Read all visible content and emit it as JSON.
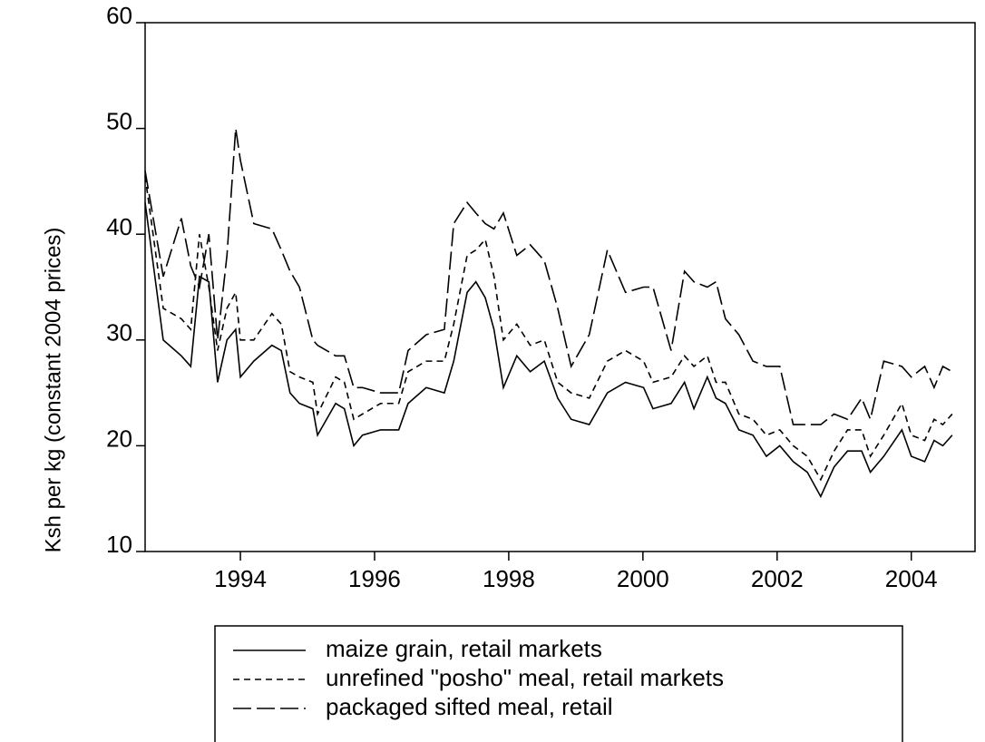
{
  "chart_data": {
    "type": "line",
    "y_label": "Ksh per kg (constant 2004 prices)",
    "x": [
      1992.58,
      1992.85,
      1993.12,
      1993.26,
      1993.39,
      1993.53,
      1993.66,
      1993.8,
      1993.93,
      1994.0,
      1994.2,
      1994.47,
      1994.61,
      1994.74,
      1994.88,
      1995.08,
      1995.15,
      1995.42,
      1995.55,
      1995.69,
      1995.82,
      1996.09,
      1996.36,
      1996.5,
      1996.77,
      1997.04,
      1997.18,
      1997.38,
      1997.51,
      1997.65,
      1997.78,
      1997.92,
      1998.12,
      1998.32,
      1998.53,
      1998.73,
      1998.93,
      1999.2,
      1999.47,
      1999.74,
      2000.01,
      2000.15,
      2000.42,
      2000.62,
      2000.76,
      2000.96,
      2001.09,
      2001.23,
      2001.43,
      2001.64,
      2001.84,
      2002.04,
      2002.24,
      2002.45,
      2002.65,
      2002.85,
      2003.05,
      2003.26,
      2003.39,
      2003.59,
      2003.86,
      2004.0,
      2004.2,
      2004.34,
      2004.47,
      2004.61
    ],
    "series": [
      {
        "name": "maize grain, retail markets",
        "color": "#000000",
        "dash": "solid",
        "values": [
          43,
          30,
          28.5,
          27.5,
          36,
          35.5,
          26,
          30,
          31,
          26.5,
          28,
          29.5,
          29,
          25,
          24,
          23.5,
          21,
          24,
          23.5,
          20,
          21,
          21.5,
          21.5,
          24,
          25.5,
          25,
          28,
          34.5,
          35.5,
          34,
          31,
          25.5,
          28.5,
          27,
          28,
          24.5,
          22.5,
          22,
          25,
          26,
          25.5,
          23.5,
          24,
          26,
          23.5,
          26.5,
          24.5,
          24,
          21.5,
          21,
          19,
          20,
          18.5,
          17.5,
          15.2,
          18,
          19.5,
          19.5,
          17.5,
          19,
          21.5,
          19,
          18.5,
          20.5,
          20,
          21
        ]
      },
      {
        "name": "unrefined \"posho\" meal, retail markets",
        "color": "#000000",
        "dash": "short",
        "values": [
          45.5,
          33,
          32,
          31,
          40,
          35,
          29,
          33,
          34.5,
          30,
          30,
          32.5,
          31.5,
          27,
          26.5,
          26,
          23,
          26.5,
          26,
          22.5,
          23,
          24,
          24,
          27,
          28,
          28,
          31.5,
          38,
          38.5,
          39.5,
          36,
          30,
          31.5,
          29.5,
          30,
          26,
          25,
          24.5,
          28,
          29,
          28,
          26,
          26.5,
          28.5,
          27.5,
          28.5,
          26,
          26,
          23,
          22.5,
          21,
          21.5,
          20,
          19,
          16.8,
          19.5,
          21.5,
          21.5,
          19,
          21,
          24,
          21,
          20.5,
          22.5,
          22,
          23
        ]
      },
      {
        "name": "packaged sifted meal, retail",
        "color": "#000000",
        "dash": "long",
        "values": [
          46,
          36,
          41.5,
          37,
          35,
          40,
          30,
          38,
          50,
          47,
          41,
          40.5,
          38.5,
          36.5,
          35,
          30,
          29.5,
          28.5,
          28.5,
          25.5,
          25.5,
          25,
          25,
          29,
          30.5,
          31,
          41,
          43,
          42,
          41,
          40.5,
          42,
          38,
          39,
          37.5,
          33,
          27.5,
          30.5,
          38.5,
          34.5,
          35,
          35,
          29,
          36.5,
          35.5,
          35,
          35.5,
          32,
          30.5,
          28,
          27.5,
          27.5,
          22,
          22,
          22,
          23,
          22.5,
          24.5,
          22.5,
          28,
          27.5,
          26.5,
          27.5,
          25.5,
          27.5,
          27
        ]
      }
    ],
    "xlim": [
      1992.58,
      2004.95
    ],
    "xticks": [
      1994,
      1996,
      1998,
      2000,
      2002,
      2004
    ],
    "ylim": [
      10,
      60
    ],
    "yticks": [
      10,
      20,
      30,
      40,
      50,
      60
    ],
    "grid": false,
    "legend": "bottom"
  }
}
